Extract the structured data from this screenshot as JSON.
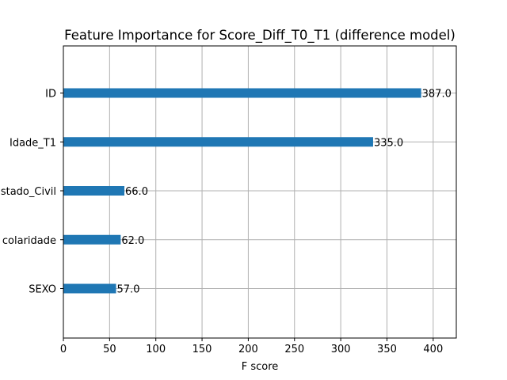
{
  "chart_data": {
    "type": "bar",
    "orientation": "horizontal",
    "title": "Feature Importance for Score_Diff_T0_T1 (difference model)",
    "xlabel": "F score",
    "ylabel": "",
    "categories": [
      "SEXO",
      "colaridade",
      "stado_Civil",
      "Idade_T1",
      "ID"
    ],
    "values": [
      57.0,
      62.0,
      66.0,
      335.0,
      387.0
    ],
    "data_labels": [
      "57.0",
      "62.0",
      "66.0",
      "335.0",
      "387.0"
    ],
    "xlim": [
      0,
      425
    ],
    "xticks": [
      0,
      50,
      100,
      150,
      200,
      250,
      300,
      350,
      400
    ],
    "xtick_labels": [
      "0",
      "50",
      "100",
      "150",
      "200",
      "250",
      "300",
      "350",
      "400"
    ],
    "grid": true,
    "bar_color": "#1f77b4",
    "grid_color": "#b0b0b0"
  }
}
